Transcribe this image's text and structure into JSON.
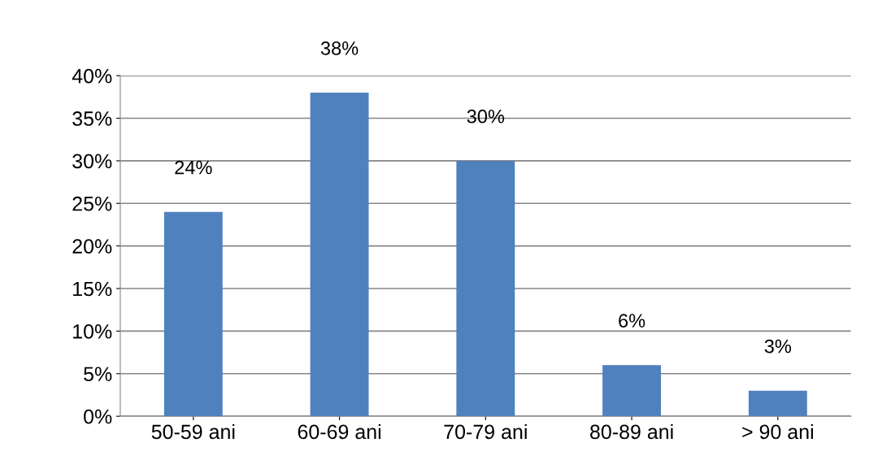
{
  "chart_data": {
    "type": "bar",
    "categories": [
      "50-59 ani",
      "60-69 ani",
      "70-79 ani",
      "80-89 ani",
      "> 90 ani"
    ],
    "values": [
      24,
      38,
      30,
      6,
      3
    ],
    "value_labels": [
      "24%",
      "38%",
      "30%",
      "6%",
      "3%"
    ],
    "color": "#4f81bd",
    "ylim": [
      0,
      40
    ],
    "yticks": [
      {
        "value": 0,
        "label": "0%"
      },
      {
        "value": 5,
        "label": "5%"
      },
      {
        "value": 10,
        "label": "10%"
      },
      {
        "value": 15,
        "label": "15%"
      },
      {
        "value": 20,
        "label": "20%"
      },
      {
        "value": 25,
        "label": "25%"
      },
      {
        "value": 30,
        "label": "30%"
      },
      {
        "value": 35,
        "label": "35%"
      },
      {
        "value": 40,
        "label": "40%"
      }
    ],
    "grid": "y",
    "legend": false
  }
}
